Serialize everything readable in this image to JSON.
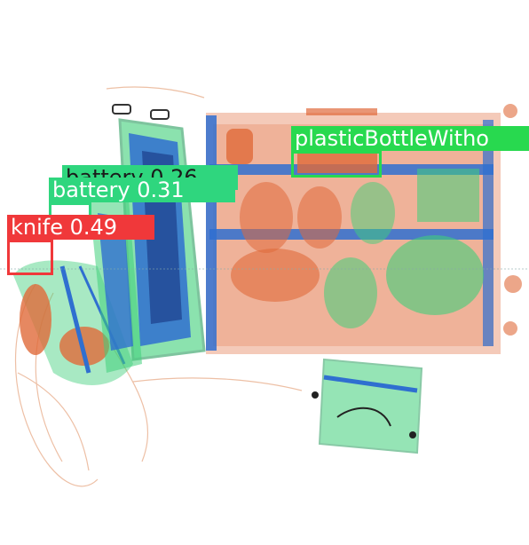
{
  "detections": [
    {
      "label": "plasticBottleWithoutCap",
      "shown_text": "plasticBottleWitho",
      "confidence_text": "",
      "color": "#28d94f"
    },
    {
      "label": "battery",
      "shown_text": "battery 0.26",
      "confidence_text": "0.26",
      "color": "#2fd67e"
    },
    {
      "label": "battery",
      "shown_text": "battery 0.31",
      "confidence_text": "0.31",
      "color": "#2fd67e"
    },
    {
      "label": "knife",
      "shown_text": "knife 0.49",
      "confidence_text": "0.49",
      "color": "#f0383a"
    }
  ],
  "colors": {
    "background": "#ffffff",
    "organic": "#e06a3a",
    "inorganic": "#3fcf7a",
    "metal": "#2f6fd0",
    "dark_metal": "#1d3f8a"
  }
}
